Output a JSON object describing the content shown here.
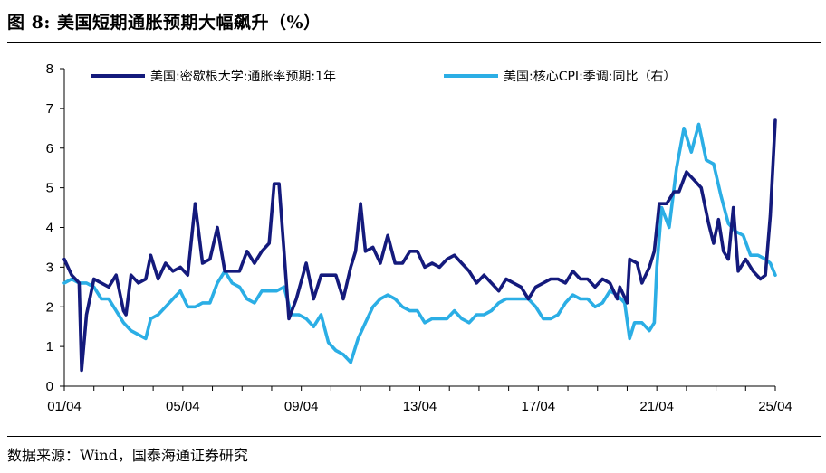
{
  "title": "图 8:  美国短期通胀预期大幅飙升（%）",
  "source": "数据来源：Wind，国泰海通证券研究",
  "chart_data": {
    "type": "line",
    "y_left": {
      "min": 0,
      "max": 8,
      "ticks": [
        0,
        1,
        2,
        3,
        4,
        5,
        6,
        7,
        8
      ]
    },
    "x_ticks": [
      "01/04",
      "05/04",
      "09/04",
      "13/04",
      "17/04",
      "21/04",
      "25/04"
    ],
    "x_range": [
      "2001-04",
      "2025-04"
    ],
    "grid": false,
    "legend_position": "top",
    "series": [
      {
        "name": "美国:密歇根大学:通胀率预期:1年",
        "color": "#141a7c",
        "points": [
          [
            "2001-04",
            3.2
          ],
          [
            "2001-07",
            2.8
          ],
          [
            "2001-10",
            2.6
          ],
          [
            "2001-11",
            0.4
          ],
          [
            "2002-01",
            1.8
          ],
          [
            "2002-04",
            2.7
          ],
          [
            "2002-07",
            2.6
          ],
          [
            "2002-10",
            2.5
          ],
          [
            "2003-01",
            2.8
          ],
          [
            "2003-04",
            1.9
          ],
          [
            "2003-05",
            1.8
          ],
          [
            "2003-07",
            2.8
          ],
          [
            "2003-10",
            2.6
          ],
          [
            "2004-01",
            2.7
          ],
          [
            "2004-03",
            3.3
          ],
          [
            "2004-06",
            2.7
          ],
          [
            "2004-09",
            3.1
          ],
          [
            "2004-12",
            2.9
          ],
          [
            "2005-03",
            3.0
          ],
          [
            "2005-06",
            2.8
          ],
          [
            "2005-09",
            4.6
          ],
          [
            "2005-10",
            4.1
          ],
          [
            "2005-12",
            3.1
          ],
          [
            "2006-03",
            3.2
          ],
          [
            "2006-06",
            4.0
          ],
          [
            "2006-09",
            2.9
          ],
          [
            "2006-12",
            2.9
          ],
          [
            "2007-03",
            2.9
          ],
          [
            "2007-06",
            3.4
          ],
          [
            "2007-09",
            3.1
          ],
          [
            "2007-12",
            3.4
          ],
          [
            "2008-03",
            3.6
          ],
          [
            "2008-05",
            5.1
          ],
          [
            "2008-07",
            5.1
          ],
          [
            "2008-09",
            3.4
          ],
          [
            "2008-11",
            1.7
          ],
          [
            "2009-02",
            2.2
          ],
          [
            "2009-06",
            3.1
          ],
          [
            "2009-09",
            2.2
          ],
          [
            "2009-12",
            2.8
          ],
          [
            "2010-03",
            2.8
          ],
          [
            "2010-06",
            2.8
          ],
          [
            "2010-09",
            2.2
          ],
          [
            "2010-12",
            3.0
          ],
          [
            "2011-02",
            3.4
          ],
          [
            "2011-04",
            4.6
          ],
          [
            "2011-06",
            3.4
          ],
          [
            "2011-09",
            3.5
          ],
          [
            "2011-12",
            3.1
          ],
          [
            "2012-03",
            3.8
          ],
          [
            "2012-06",
            3.1
          ],
          [
            "2012-09",
            3.1
          ],
          [
            "2012-12",
            3.4
          ],
          [
            "2013-03",
            3.4
          ],
          [
            "2013-06",
            3.0
          ],
          [
            "2013-09",
            3.1
          ],
          [
            "2013-12",
            3.0
          ],
          [
            "2014-03",
            3.2
          ],
          [
            "2014-06",
            3.3
          ],
          [
            "2014-09",
            3.1
          ],
          [
            "2014-12",
            2.9
          ],
          [
            "2015-03",
            2.6
          ],
          [
            "2015-06",
            2.8
          ],
          [
            "2015-09",
            2.6
          ],
          [
            "2015-12",
            2.4
          ],
          [
            "2016-03",
            2.7
          ],
          [
            "2016-06",
            2.6
          ],
          [
            "2016-09",
            2.5
          ],
          [
            "2016-12",
            2.2
          ],
          [
            "2017-03",
            2.5
          ],
          [
            "2017-06",
            2.6
          ],
          [
            "2017-09",
            2.7
          ],
          [
            "2017-12",
            2.7
          ],
          [
            "2018-03",
            2.6
          ],
          [
            "2018-06",
            2.9
          ],
          [
            "2018-09",
            2.7
          ],
          [
            "2018-12",
            2.7
          ],
          [
            "2019-03",
            2.5
          ],
          [
            "2019-06",
            2.7
          ],
          [
            "2019-09",
            2.6
          ],
          [
            "2019-12",
            2.2
          ],
          [
            "2020-01",
            2.5
          ],
          [
            "2020-04",
            2.1
          ],
          [
            "2020-05",
            3.2
          ],
          [
            "2020-08",
            3.1
          ],
          [
            "2020-10",
            2.6
          ],
          [
            "2021-01",
            3.0
          ],
          [
            "2021-03",
            3.4
          ],
          [
            "2021-05",
            4.6
          ],
          [
            "2021-08",
            4.6
          ],
          [
            "2021-11",
            4.9
          ],
          [
            "2022-01",
            4.9
          ],
          [
            "2022-04",
            5.4
          ],
          [
            "2022-07",
            5.2
          ],
          [
            "2022-10",
            5.0
          ],
          [
            "2023-01",
            4.1
          ],
          [
            "2023-03",
            3.6
          ],
          [
            "2023-05",
            4.2
          ],
          [
            "2023-07",
            3.4
          ],
          [
            "2023-09",
            3.2
          ],
          [
            "2023-11",
            4.5
          ],
          [
            "2024-01",
            2.9
          ],
          [
            "2024-04",
            3.2
          ],
          [
            "2024-07",
            2.9
          ],
          [
            "2024-10",
            2.7
          ],
          [
            "2024-12",
            2.8
          ],
          [
            "2025-02",
            4.3
          ],
          [
            "2025-04",
            6.7
          ]
        ]
      },
      {
        "name": "美国:核心CPI:季调:同比（右）",
        "color": "#2baee5",
        "points": [
          [
            "2001-04",
            2.6
          ],
          [
            "2001-07",
            2.7
          ],
          [
            "2001-10",
            2.6
          ],
          [
            "2002-01",
            2.6
          ],
          [
            "2002-04",
            2.5
          ],
          [
            "2002-07",
            2.2
          ],
          [
            "2002-10",
            2.2
          ],
          [
            "2003-01",
            1.9
          ],
          [
            "2003-04",
            1.6
          ],
          [
            "2003-07",
            1.4
          ],
          [
            "2003-10",
            1.3
          ],
          [
            "2004-01",
            1.2
          ],
          [
            "2004-03",
            1.7
          ],
          [
            "2004-06",
            1.8
          ],
          [
            "2004-09",
            2.0
          ],
          [
            "2004-12",
            2.2
          ],
          [
            "2005-03",
            2.4
          ],
          [
            "2005-06",
            2.0
          ],
          [
            "2005-09",
            2.0
          ],
          [
            "2005-12",
            2.1
          ],
          [
            "2006-03",
            2.1
          ],
          [
            "2006-06",
            2.6
          ],
          [
            "2006-09",
            2.9
          ],
          [
            "2006-12",
            2.6
          ],
          [
            "2007-03",
            2.5
          ],
          [
            "2007-06",
            2.2
          ],
          [
            "2007-09",
            2.1
          ],
          [
            "2007-12",
            2.4
          ],
          [
            "2008-03",
            2.4
          ],
          [
            "2008-06",
            2.4
          ],
          [
            "2008-09",
            2.5
          ],
          [
            "2008-12",
            1.8
          ],
          [
            "2009-03",
            1.8
          ],
          [
            "2009-06",
            1.7
          ],
          [
            "2009-09",
            1.5
          ],
          [
            "2009-12",
            1.8
          ],
          [
            "2010-03",
            1.1
          ],
          [
            "2010-06",
            0.9
          ],
          [
            "2010-09",
            0.8
          ],
          [
            "2010-12",
            0.6
          ],
          [
            "2011-03",
            1.2
          ],
          [
            "2011-06",
            1.6
          ],
          [
            "2011-09",
            2.0
          ],
          [
            "2011-12",
            2.2
          ],
          [
            "2012-03",
            2.3
          ],
          [
            "2012-06",
            2.2
          ],
          [
            "2012-09",
            2.0
          ],
          [
            "2012-12",
            1.9
          ],
          [
            "2013-03",
            1.9
          ],
          [
            "2013-06",
            1.6
          ],
          [
            "2013-09",
            1.7
          ],
          [
            "2013-12",
            1.7
          ],
          [
            "2014-03",
            1.7
          ],
          [
            "2014-06",
            1.9
          ],
          [
            "2014-09",
            1.7
          ],
          [
            "2014-12",
            1.6
          ],
          [
            "2015-03",
            1.8
          ],
          [
            "2015-06",
            1.8
          ],
          [
            "2015-09",
            1.9
          ],
          [
            "2015-12",
            2.1
          ],
          [
            "2016-03",
            2.2
          ],
          [
            "2016-06",
            2.2
          ],
          [
            "2016-09",
            2.2
          ],
          [
            "2016-12",
            2.2
          ],
          [
            "2017-03",
            2.0
          ],
          [
            "2017-06",
            1.7
          ],
          [
            "2017-09",
            1.7
          ],
          [
            "2017-12",
            1.8
          ],
          [
            "2018-03",
            2.1
          ],
          [
            "2018-06",
            2.3
          ],
          [
            "2018-09",
            2.2
          ],
          [
            "2018-12",
            2.2
          ],
          [
            "2019-03",
            2.0
          ],
          [
            "2019-06",
            2.1
          ],
          [
            "2019-09",
            2.4
          ],
          [
            "2019-12",
            2.3
          ],
          [
            "2020-03",
            2.1
          ],
          [
            "2020-05",
            1.2
          ],
          [
            "2020-07",
            1.6
          ],
          [
            "2020-10",
            1.6
          ],
          [
            "2021-01",
            1.4
          ],
          [
            "2021-03",
            1.6
          ],
          [
            "2021-04",
            3.0
          ],
          [
            "2021-06",
            4.5
          ],
          [
            "2021-09",
            4.0
          ],
          [
            "2021-12",
            5.5
          ],
          [
            "2022-03",
            6.5
          ],
          [
            "2022-06",
            5.9
          ],
          [
            "2022-09",
            6.6
          ],
          [
            "2022-12",
            5.7
          ],
          [
            "2023-03",
            5.6
          ],
          [
            "2023-06",
            4.8
          ],
          [
            "2023-09",
            4.1
          ],
          [
            "2023-12",
            3.9
          ],
          [
            "2024-03",
            3.8
          ],
          [
            "2024-06",
            3.3
          ],
          [
            "2024-09",
            3.3
          ],
          [
            "2024-12",
            3.2
          ],
          [
            "2025-02",
            3.1
          ],
          [
            "2025-04",
            2.8
          ]
        ]
      }
    ]
  }
}
